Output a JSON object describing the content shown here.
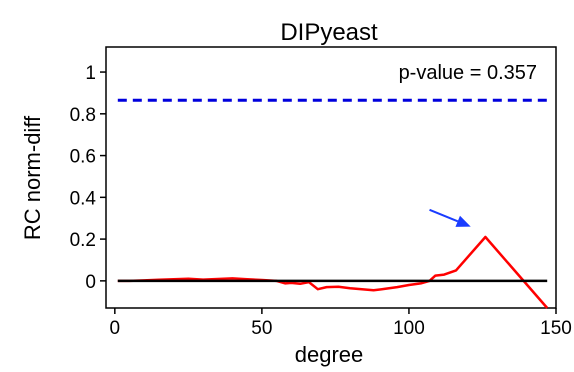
{
  "chart_data": {
    "type": "line",
    "title": "DIPyeast",
    "xlabel": "degree",
    "ylabel": "RC norm-diff",
    "xlim": [
      -3,
      150
    ],
    "ylim": [
      -0.13,
      1.12
    ],
    "xticks": [
      0,
      50,
      100,
      150
    ],
    "yticks": [
      0,
      0.2,
      0.4,
      0.6,
      0.8,
      1
    ],
    "xtick_labels": [
      "0",
      "50",
      "100",
      "150"
    ],
    "ytick_labels": [
      "0",
      "0.2",
      "0.4",
      "0.6",
      "0.8",
      "1"
    ],
    "grid": false,
    "annotation": "p-value = 0.357",
    "series": [
      {
        "style": "solid",
        "color": "#ff0000",
        "x": [
          1,
          5,
          10,
          15,
          20,
          25,
          30,
          35,
          40,
          45,
          50,
          55,
          58,
          60,
          63,
          66,
          69,
          72,
          76,
          80,
          84,
          88,
          92,
          96,
          100,
          104,
          107,
          109,
          112,
          116,
          126,
          147
        ],
        "y": [
          0,
          0,
          0.002,
          0.005,
          0.008,
          0.01,
          0.006,
          0.009,
          0.012,
          0.008,
          0.004,
          0,
          -0.012,
          -0.01,
          -0.014,
          -0.006,
          -0.04,
          -0.03,
          -0.028,
          -0.035,
          -0.04,
          -0.045,
          -0.038,
          -0.03,
          -0.02,
          -0.012,
          0.0,
          0.025,
          0.03,
          0.05,
          0.21,
          -0.13
        ]
      },
      {
        "style": "solid",
        "color": "#000000",
        "x": [
          1,
          147
        ],
        "y": [
          0,
          0
        ]
      },
      {
        "style": "dashed",
        "color": "#0000dd",
        "x": [
          1,
          147
        ],
        "y": [
          0.865,
          0.865
        ]
      }
    ],
    "arrow": {
      "color": "#1a3cff",
      "from": [
        107,
        0.34
      ],
      "to": [
        121,
        0.26
      ]
    }
  }
}
